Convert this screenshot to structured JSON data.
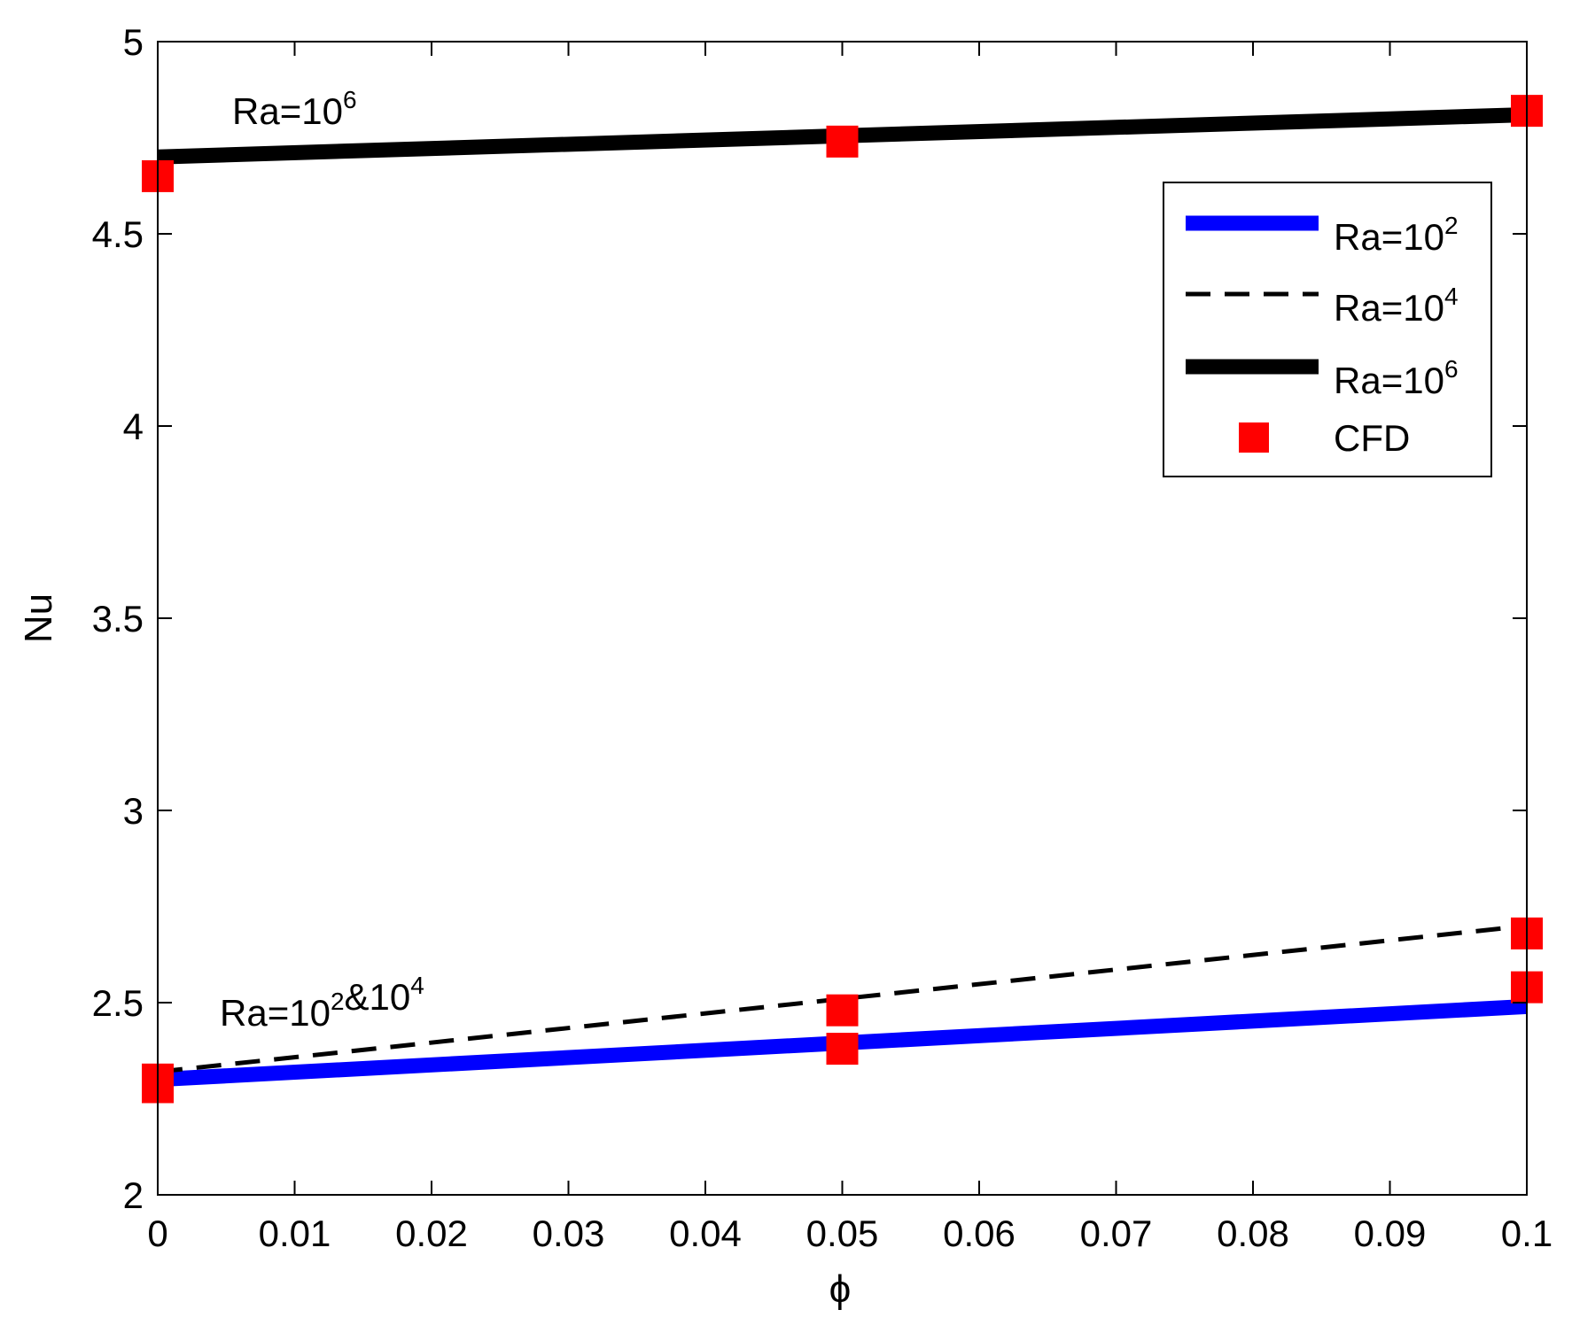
{
  "chart_data": {
    "type": "line",
    "xlabel": "ϕ",
    "ylabel": "Nu",
    "xlim": [
      0,
      0.1
    ],
    "ylim": [
      2,
      5
    ],
    "xticks": [
      "0",
      "0.01",
      "0.02",
      "0.03",
      "0.04",
      "0.05",
      "0.06",
      "0.07",
      "0.08",
      "0.09",
      "0.1"
    ],
    "yticks": [
      "2",
      "2.5",
      "3",
      "3.5",
      "4",
      "4.5",
      "5"
    ],
    "grid": false,
    "legend_position": "top-right",
    "series": [
      {
        "name_base": "Ra=10",
        "name_exp": "2",
        "style": "solid-thick",
        "color": "#0000ff",
        "x": [
          0,
          0.1
        ],
        "y": [
          2.3,
          2.49
        ]
      },
      {
        "name_base": "Ra=10",
        "name_exp": "4",
        "style": "dashed",
        "color": "#000000",
        "x": [
          0,
          0.1
        ],
        "y": [
          2.32,
          2.7
        ]
      },
      {
        "name_base": "Ra=10",
        "name_exp": "6",
        "style": "solid-thick",
        "color": "#000000",
        "x": [
          0,
          0.1
        ],
        "y": [
          4.7,
          4.81
        ]
      }
    ],
    "cfd": {
      "name": "CFD",
      "color": "#ff0000",
      "points": [
        {
          "x": 0,
          "y": 2.28
        },
        {
          "x": 0,
          "y": 2.3
        },
        {
          "x": 0.05,
          "y": 2.38
        },
        {
          "x": 0.1,
          "y": 2.54
        },
        {
          "x": 0.05,
          "y": 2.48
        },
        {
          "x": 0.1,
          "y": 2.68
        },
        {
          "x": 0,
          "y": 4.65
        },
        {
          "x": 0.05,
          "y": 4.74
        },
        {
          "x": 0.1,
          "y": 4.82
        }
      ]
    },
    "annotations": [
      {
        "parts": [
          {
            "t": "Ra=10"
          },
          {
            "t": "6",
            "sup": true
          }
        ]
      },
      {
        "parts": [
          {
            "t": "Ra=10"
          },
          {
            "t": "2",
            "sup": true
          },
          {
            "t": "&10"
          },
          {
            "t": "4",
            "sup": true
          }
        ]
      }
    ]
  }
}
